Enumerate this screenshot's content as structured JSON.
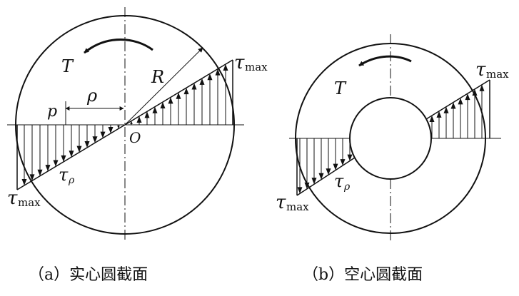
{
  "diagram": {
    "captions": {
      "a": "（a）实心圆截面",
      "b": "（b）空心圆截面"
    },
    "labels": {
      "torque": "T",
      "radius": "R",
      "rho": "ρ",
      "point_p": "p",
      "origin": "O",
      "tau": "τ",
      "max_sub": "max",
      "rho_sub": "ρ"
    }
  }
}
